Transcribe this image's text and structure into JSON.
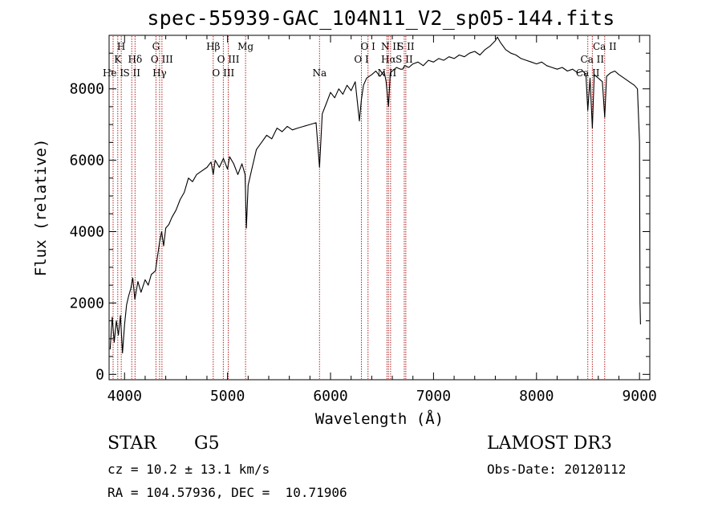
{
  "header": {
    "title": "spec-55939-GAC_104N11_V2_sp05-144.fits"
  },
  "chart_data": {
    "type": "line",
    "title": "spec-55939-GAC_104N11_V2_sp05-144.fits",
    "xlabel": "Wavelength (Å)",
    "ylabel": "Flux (relative)",
    "xlim": [
      3850,
      9100
    ],
    "ylim": [
      -150,
      9500
    ],
    "xticks": [
      4000,
      5000,
      6000,
      7000,
      8000,
      9000
    ],
    "yticks": [
      0,
      2000,
      4000,
      6000,
      8000
    ],
    "series": [
      {
        "name": "flux",
        "color": "#000000",
        "x": [
          3860,
          3880,
          3900,
          3920,
          3940,
          3960,
          3980,
          4000,
          4020,
          4040,
          4060,
          4080,
          4100,
          4130,
          4160,
          4200,
          4230,
          4260,
          4300,
          4320,
          4340,
          4360,
          4380,
          4400,
          4430,
          4460,
          4500,
          4540,
          4580,
          4620,
          4660,
          4700,
          4750,
          4800,
          4840,
          4861,
          4880,
          4920,
          4960,
          5000,
          5020,
          5060,
          5100,
          5140,
          5170,
          5183,
          5200,
          5240,
          5280,
          5330,
          5380,
          5430,
          5480,
          5530,
          5580,
          5630,
          5680,
          5740,
          5800,
          5860,
          5893,
          5920,
          5960,
          6000,
          6040,
          6080,
          6120,
          6160,
          6200,
          6240,
          6280,
          6300,
          6320,
          6350,
          6400,
          6440,
          6480,
          6520,
          6540,
          6563,
          6580,
          6600,
          6640,
          6680,
          6700,
          6720,
          6760,
          6800,
          6850,
          6900,
          6950,
          7000,
          7050,
          7100,
          7150,
          7200,
          7250,
          7300,
          7350,
          7400,
          7450,
          7500,
          7550,
          7600,
          7620,
          7650,
          7700,
          7750,
          7800,
          7850,
          7900,
          7950,
          8000,
          8050,
          8100,
          8150,
          8200,
          8250,
          8300,
          8350,
          8400,
          8450,
          8480,
          8498,
          8520,
          8542,
          8560,
          8600,
          8640,
          8662,
          8680,
          8720,
          8760,
          8800,
          8850,
          8900,
          8950,
          8980,
          9000,
          9005,
          9010
        ],
        "y": [
          700,
          1600,
          900,
          1500,
          1100,
          1650,
          600,
          1400,
          1950,
          2200,
          2400,
          2700,
          2100,
          2600,
          2300,
          2650,
          2500,
          2800,
          2900,
          3300,
          3700,
          4000,
          3600,
          4100,
          4200,
          4400,
          4600,
          4900,
          5100,
          5500,
          5400,
          5600,
          5700,
          5800,
          5950,
          5600,
          6000,
          5800,
          6050,
          5750,
          6100,
          5900,
          5600,
          5900,
          5600,
          4100,
          5300,
          5800,
          6300,
          6500,
          6700,
          6600,
          6900,
          6800,
          6950,
          6850,
          6900,
          6950,
          7000,
          7050,
          5800,
          7300,
          7600,
          7900,
          7750,
          8000,
          7850,
          8100,
          7950,
          8200,
          7100,
          7700,
          8100,
          8300,
          8400,
          8500,
          8350,
          8500,
          8200,
          7500,
          8450,
          8500,
          8600,
          8550,
          8550,
          8650,
          8600,
          8700,
          8750,
          8650,
          8800,
          8750,
          8850,
          8800,
          8900,
          8850,
          8950,
          8900,
          9000,
          9050,
          8950,
          9100,
          9200,
          9350,
          9450,
          9300,
          9100,
          9000,
          8950,
          8850,
          8800,
          8750,
          8700,
          8750,
          8650,
          8600,
          8550,
          8600,
          8500,
          8550,
          8450,
          8500,
          8400,
          7400,
          8300,
          6900,
          8400,
          8300,
          8200,
          7200,
          8350,
          8450,
          8500,
          8400,
          8300,
          8200,
          8100,
          8000,
          6500,
          2000,
          1400
        ]
      }
    ],
    "lines": [
      {
        "label": "He I",
        "wavelength": 3889,
        "row": 3
      },
      {
        "label": "K",
        "wavelength": 3934,
        "row": 2
      },
      {
        "label": "H",
        "wavelength": 3968,
        "row": 1
      },
      {
        "label": "S II",
        "wavelength": 4070,
        "row": 3
      },
      {
        "label": "Hδ",
        "wavelength": 4102,
        "row": 2
      },
      {
        "label": "G",
        "wavelength": 4305,
        "row": 1
      },
      {
        "label": "Hγ",
        "wavelength": 4340,
        "row": 3
      },
      {
        "label": "O III",
        "wavelength": 4363,
        "row": 2
      },
      {
        "label": "Hβ",
        "wavelength": 4861,
        "row": 1
      },
      {
        "label": "O III",
        "wavelength": 4959,
        "row": 3
      },
      {
        "label": "O III",
        "wavelength": 5007,
        "row": 2
      },
      {
        "label": "Mg",
        "wavelength": 5175,
        "row": 1
      },
      {
        "label": "Na",
        "wavelength": 5893,
        "row": 3
      },
      {
        "label": "O I",
        "wavelength": 6300,
        "row": 2
      },
      {
        "label": "O I",
        "wavelength": 6364,
        "row": 1
      },
      {
        "label": "N II",
        "wavelength": 6548,
        "row": 3
      },
      {
        "label": "Hα",
        "wavelength": 6563,
        "row": 2
      },
      {
        "label": "N II",
        "wavelength": 6583,
        "row": 1
      },
      {
        "label": "S II",
        "wavelength": 6716,
        "row": 2
      },
      {
        "label": "S II",
        "wavelength": 6731,
        "row": 1
      },
      {
        "label": "Ca II",
        "wavelength": 8498,
        "row": 3
      },
      {
        "label": "Ca II",
        "wavelength": 8542,
        "row": 2
      },
      {
        "label": "Ca II",
        "wavelength": 8662,
        "row": 1
      }
    ],
    "line_color": "#b22222"
  },
  "info": {
    "object_class": "STAR",
    "subclass": "G5",
    "redshift": "cz = 10.2 ± 13.1 km/s",
    "coords": "RA = 104.57936, DEC =  10.71906",
    "survey": "LAMOST DR3",
    "obs_date": "Obs-Date: 20120112"
  }
}
